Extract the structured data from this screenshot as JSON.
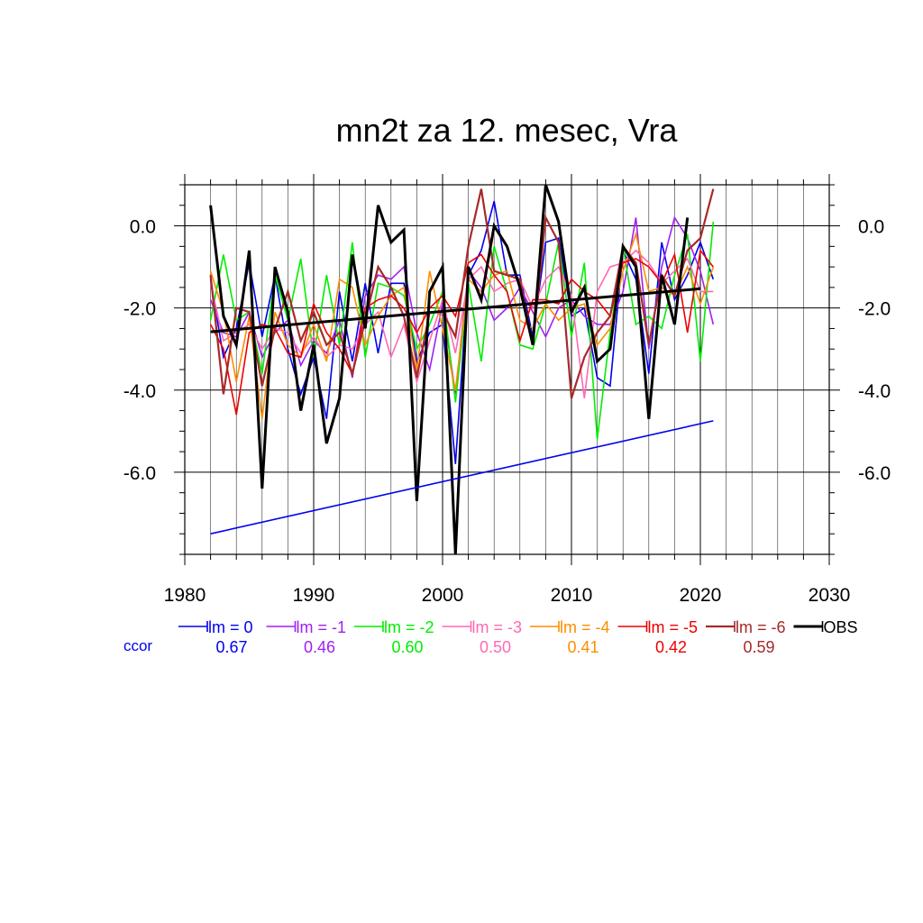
{
  "chart_data": {
    "type": "line",
    "title": "mn2t za 12. mesec, Vra",
    "xlabel": "",
    "ylabel": "",
    "xlim": [
      1980,
      2030
    ],
    "ylim": [
      -8.0,
      1.0
    ],
    "x_ticks": [
      1980,
      1990,
      2000,
      2010,
      2020,
      2030
    ],
    "x_tick_labels": [
      "1980",
      "1990",
      "2000",
      "2010",
      "2020",
      "2030"
    ],
    "y_ticks": [
      0.0,
      -2.0,
      -4.0,
      -6.0
    ],
    "y_tick_labels": [
      "0.0",
      "-2.0",
      "-4.0",
      "-6.0"
    ],
    "grid": true,
    "legend_position": "bottom",
    "ccor_label": "ccor",
    "x": [
      1982,
      1983,
      1984,
      1985,
      1986,
      1987,
      1988,
      1989,
      1990,
      1991,
      1992,
      1993,
      1994,
      1995,
      1996,
      1997,
      1998,
      1999,
      2000,
      2001,
      2002,
      2003,
      2004,
      2005,
      2006,
      2007,
      2008,
      2009,
      2010,
      2011,
      2012,
      2013,
      2014,
      2015,
      2016,
      2017,
      2018,
      2019,
      2020,
      2021
    ],
    "series": [
      {
        "name": "lm = 0",
        "color": "#0000ee",
        "ccor": "0.67",
        "width": 1.6,
        "values": [
          -1.3,
          -3.2,
          -2.5,
          -0.9,
          -2.7,
          -1.2,
          -3.0,
          -4.1,
          -3.2,
          -4.7,
          -1.6,
          -3.3,
          -1.4,
          -3.1,
          -1.4,
          -1.4,
          -3.3,
          -2.6,
          -2.4,
          -5.8,
          -1.2,
          -0.6,
          0.6,
          -1.2,
          -1.2,
          -2.7,
          -0.4,
          -0.3,
          -2.2,
          -2.0,
          -3.7,
          -3.9,
          -0.6,
          -1.3,
          -3.6,
          -0.4,
          -1.8,
          -1.2,
          -0.4,
          -1.3
        ]
      },
      {
        "name": "lm = -1",
        "color": "#a020f0",
        "ccor": "0.46",
        "width": 1.6,
        "values": [
          -1.8,
          -2.6,
          -2.7,
          -2.1,
          -3.2,
          -2.6,
          -2.3,
          -3.4,
          -2.8,
          -3.1,
          -2.3,
          -3.7,
          -1.7,
          -1.2,
          -1.3,
          -1.0,
          -2.6,
          -3.5,
          -1.9,
          -4.1,
          -1.1,
          -1.5,
          -2.3,
          -2.0,
          -1.5,
          -2.1,
          -2.7,
          -2.0,
          -1.8,
          -2.2,
          -2.4,
          -2.4,
          -1.6,
          0.2,
          -3.0,
          -1.0,
          0.2,
          -0.3,
          -1.1,
          -2.4
        ]
      },
      {
        "name": "lm = -2",
        "color": "#00ee00",
        "ccor": "0.60",
        "width": 1.6,
        "values": [
          -2.3,
          -0.7,
          -2.3,
          -2.1,
          -3.6,
          -1.2,
          -2.3,
          -0.8,
          -3.2,
          -1.2,
          -2.9,
          -0.4,
          -3.2,
          -1.4,
          -1.5,
          -1.7,
          -3.0,
          -2.4,
          -1.6,
          -4.3,
          -1.4,
          -3.3,
          -0.5,
          -1.6,
          -2.9,
          -3.0,
          -1.9,
          -0.4,
          -2.7,
          -0.9,
          -5.2,
          -2.6,
          -0.5,
          -2.4,
          -2.2,
          -2.5,
          -1.2,
          -0.2,
          -3.3,
          0.1
        ]
      },
      {
        "name": "lm = -3",
        "color": "#ff69b4",
        "ccor": "0.50",
        "width": 1.6,
        "values": [
          -1.4,
          -2.8,
          -2.6,
          -2.4,
          -3.0,
          -2.5,
          -2.6,
          -3.1,
          -2.7,
          -3.2,
          -2.9,
          -3.0,
          -2.4,
          -2.1,
          -3.2,
          -2.4,
          -3.8,
          -2.8,
          -1.8,
          -3.1,
          -1.3,
          -1.0,
          -1.6,
          -1.4,
          -1.3,
          -2.0,
          -1.3,
          -1.0,
          -1.7,
          -4.2,
          -1.6,
          -1.0,
          -0.9,
          -0.6,
          -0.9,
          -1.4,
          -1.1,
          -0.8,
          -1.6,
          -1.6
        ]
      },
      {
        "name": "lm = -4",
        "color": "#ff8c00",
        "ccor": "0.41",
        "width": 1.6,
        "values": [
          -1.1,
          -2.1,
          -3.8,
          -2.2,
          -4.7,
          -2.1,
          -2.9,
          -3.2,
          -2.4,
          -3.3,
          -1.3,
          -1.5,
          -2.9,
          -2.2,
          -1.7,
          -1.5,
          -3.5,
          -1.1,
          -2.5,
          -4.0,
          -1.3,
          -1.6,
          -1.2,
          -1.1,
          -2.3,
          -2.5,
          -1.9,
          -2.3,
          -2.0,
          -1.9,
          -2.9,
          -2.5,
          -1.1,
          -0.2,
          -1.6,
          -1.5,
          -1.7,
          -1.0,
          -1.9,
          -1.0
        ]
      },
      {
        "name": "lm = -5",
        "color": "#ee0000",
        "ccor": "0.42",
        "width": 1.6,
        "values": [
          -2.4,
          -3.0,
          -4.6,
          -2.6,
          -2.4,
          -2.5,
          -3.1,
          -3.2,
          -1.9,
          -2.6,
          -3.0,
          -3.6,
          -2.0,
          -1.8,
          -1.7,
          -2.0,
          -2.6,
          -2.0,
          -1.7,
          -2.2,
          -0.9,
          -0.7,
          -1.2,
          -1.6,
          -2.8,
          -1.8,
          -1.8,
          -1.9,
          -1.3,
          -1.6,
          -1.8,
          -2.2,
          -0.9,
          -0.8,
          -1.0,
          -1.4,
          -0.7,
          -2.6,
          -0.6,
          -1.0
        ]
      },
      {
        "name": "lm = -6",
        "color": "#a52a2a",
        "ccor": "0.59",
        "width": 2.2,
        "values": [
          -1.2,
          -4.1,
          -2.0,
          -2.1,
          -3.9,
          -2.5,
          -1.6,
          -2.8,
          -2.1,
          -2.9,
          -2.6,
          -3.6,
          -2.3,
          -1.0,
          -1.5,
          -2.2,
          -3.7,
          -2.1,
          -2.1,
          -2.7,
          -0.5,
          0.9,
          -1.1,
          -1.2,
          -1.3,
          -2.9,
          0.2,
          -0.4,
          -4.2,
          -3.2,
          -2.6,
          -2.2,
          -0.5,
          -0.9,
          -2.9,
          -1.2,
          -1.7,
          -0.6,
          -0.3,
          0.9
        ]
      },
      {
        "name": "OBS",
        "color": "#000000",
        "ccor": "",
        "width": 3,
        "values": [
          0.5,
          -2.2,
          -2.9,
          -0.6,
          -6.4,
          -1.0,
          -2.1,
          -4.5,
          -2.9,
          -5.3,
          -4.2,
          -0.7,
          -2.5,
          0.5,
          -0.4,
          -0.1,
          -6.7,
          -1.6,
          -1.0,
          -8.0,
          -1.0,
          -1.8,
          0.0,
          -0.5,
          -1.5,
          -2.9,
          1.0,
          0.1,
          -2.1,
          -1.5,
          -3.3,
          -3.0,
          -0.5,
          -1.0,
          -4.7,
          -1.2,
          -2.4,
          0.2,
          null,
          null
        ]
      }
    ],
    "trend_lines": [
      {
        "name": "OBS trend",
        "color": "#000000",
        "x": [
          1982,
          2020
        ],
        "values": [
          -2.58,
          -1.53
        ],
        "width": 3
      },
      {
        "name": "lm = 0 trend",
        "color": "#0000ee",
        "x": [
          1982,
          2021
        ],
        "values": [
          -7.5,
          -4.75
        ],
        "width": 1.6
      }
    ]
  }
}
